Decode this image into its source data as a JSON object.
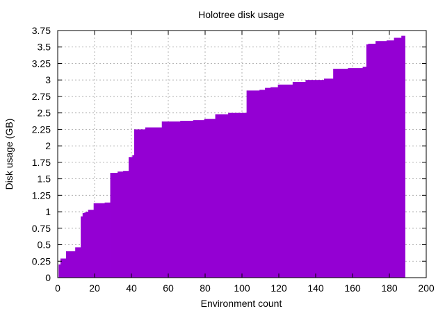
{
  "chart_data": {
    "type": "area",
    "title": "Holotree disk usage",
    "xlabel": "Environment count",
    "ylabel": "Disk usage (GB)",
    "xlim": [
      0,
      200
    ],
    "ylim": [
      0,
      3.75
    ],
    "xticks": [
      "0",
      "20",
      "40",
      "60",
      "80",
      "100",
      "120",
      "140",
      "160",
      "180",
      "200"
    ],
    "yticks": [
      "0",
      "0.25",
      "0.5",
      "0.75",
      "1",
      "1.25",
      "1.5",
      "1.75",
      "2",
      "2.25",
      "2.5",
      "2.75",
      "3",
      "3.25",
      "3.5",
      "3.75"
    ],
    "grid": true,
    "legend": "none",
    "fill_color": "#9400d3",
    "series": [
      {
        "x": [
          1,
          2,
          5,
          10,
          13,
          14,
          15,
          16,
          17,
          20,
          26,
          29,
          33,
          36,
          39,
          41,
          42,
          48,
          57,
          67,
          74,
          80,
          86,
          93,
          103,
          110,
          113,
          116,
          120,
          128,
          135,
          145,
          150,
          158,
          166,
          168,
          169,
          173,
          179,
          183,
          187,
          188
        ],
        "y": [
          0.2,
          0.29,
          0.4,
          0.46,
          0.93,
          0.98,
          0.99,
          1.0,
          1.03,
          1.13,
          1.14,
          1.59,
          1.61,
          1.62,
          1.83,
          1.86,
          2.25,
          2.28,
          2.37,
          2.38,
          2.39,
          2.41,
          2.48,
          2.5,
          2.84,
          2.85,
          2.88,
          2.89,
          2.93,
          2.97,
          3.0,
          3.02,
          3.17,
          3.18,
          3.2,
          3.54,
          3.55,
          3.59,
          3.6,
          3.64,
          3.67,
          3.67
        ]
      }
    ]
  }
}
